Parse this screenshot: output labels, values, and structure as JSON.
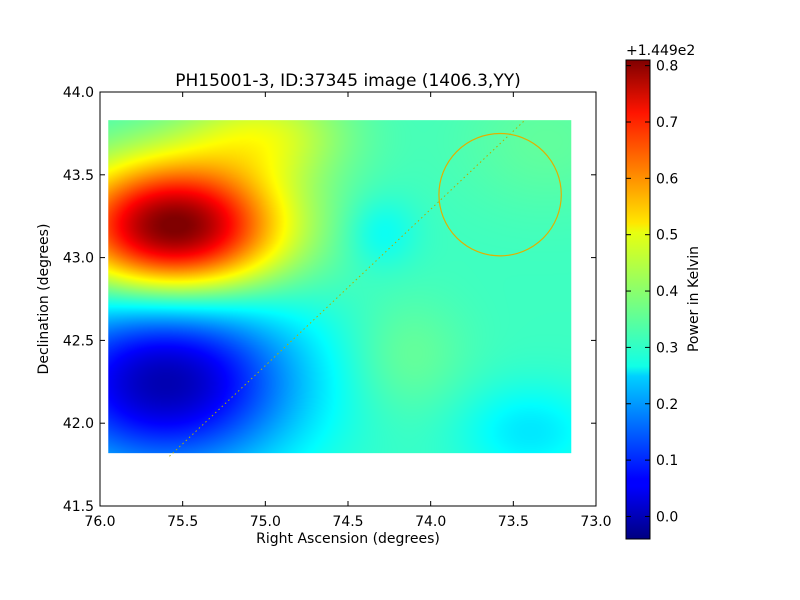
{
  "chart_data": {
    "type": "heatmap",
    "title": "PH15001-3, ID:37345 image (1406.3,YY)",
    "xlabel": "Right Ascension (degrees)",
    "ylabel": "Declination (degrees)",
    "xlim": [
      76.0,
      73.0
    ],
    "ylim": [
      41.5,
      44.0
    ],
    "x_inverted": true,
    "xticks": [
      "76.0",
      "75.5",
      "75.0",
      "74.5",
      "74.0",
      "73.5",
      "73.0"
    ],
    "yticks": [
      "41.5",
      "42.0",
      "42.5",
      "43.0",
      "43.5",
      "44.0"
    ],
    "grid": false,
    "colormap": "jet",
    "image_extent": {
      "ra": [
        75.95,
        73.15
      ],
      "dec": [
        41.82,
        43.83
      ]
    },
    "field": {
      "base": 0.33,
      "features": [
        {
          "ra": 75.55,
          "dec": 43.18,
          "sigma_ra": 0.45,
          "sigma_dec": 0.28,
          "amplitude": 0.5
        },
        {
          "ra": 75.6,
          "dec": 42.25,
          "sigma_ra": 0.55,
          "sigma_dec": 0.38,
          "amplitude": -0.33
        },
        {
          "ra": 75.0,
          "dec": 43.75,
          "sigma_ra": 0.35,
          "sigma_dec": 0.2,
          "amplitude": 0.12
        },
        {
          "ra": 74.3,
          "dec": 43.15,
          "sigma_ra": 0.15,
          "sigma_dec": 0.15,
          "amplitude": -0.05
        },
        {
          "ra": 74.15,
          "dec": 42.4,
          "sigma_ra": 0.25,
          "sigma_dec": 0.25,
          "amplitude": 0.04
        },
        {
          "ra": 73.4,
          "dec": 41.95,
          "sigma_ra": 0.3,
          "sigma_dec": 0.2,
          "amplitude": -0.07
        },
        {
          "ra": 73.3,
          "dec": 43.7,
          "sigma_ra": 0.4,
          "sigma_dec": 0.3,
          "amplitude": 0.03
        }
      ]
    },
    "track_line": {
      "points": [
        [
          75.58,
          41.8
        ],
        [
          73.43,
          43.83
        ]
      ],
      "style": "dotted",
      "color": "#b0b000"
    },
    "circle": {
      "ra": 73.58,
      "dec": 43.38,
      "radius_deg": 0.37,
      "color": "#e0b000"
    },
    "colorbar": {
      "label": "Power in Kelvin",
      "offset_label": "+1.449e2",
      "range": [
        -0.04,
        0.81
      ],
      "ticks": [
        "0.0",
        "0.1",
        "0.2",
        "0.3",
        "0.4",
        "0.5",
        "0.6",
        "0.7",
        "0.8"
      ]
    }
  }
}
